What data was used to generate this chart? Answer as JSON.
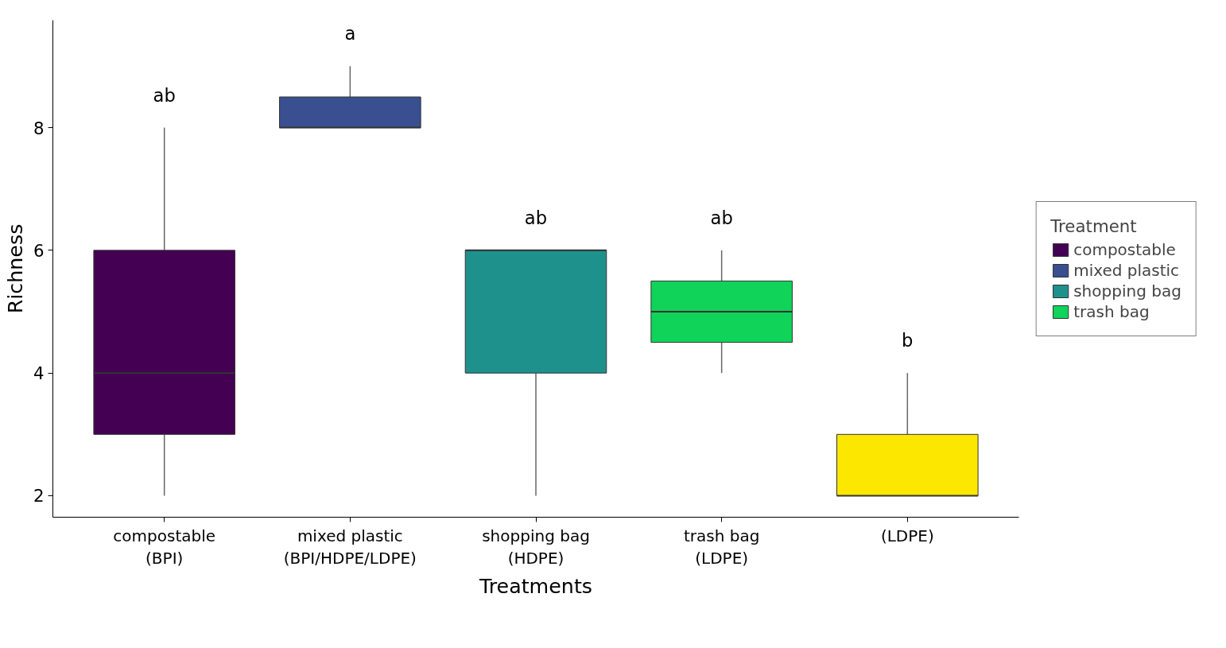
{
  "chart_data": {
    "type": "box",
    "xlabel": "Treatments",
    "ylabel": "Richness",
    "categories": [
      "compostable\n(BPI)",
      "mixed plastic\n(BPI/HDPE/LDPE)",
      "shopping bag\n(HDPE)",
      "trash bag\n(LDPE)",
      "(LDPE)"
    ],
    "series": [
      {
        "name": "compostable",
        "color": "#440154",
        "boxes": [
          {
            "low": 2,
            "q1": 3,
            "median": 4,
            "q3": 6,
            "high": 8
          },
          null,
          null,
          null,
          null
        ]
      },
      {
        "name": "mixed plastic",
        "color": "#3a4f8f",
        "boxes": [
          null,
          {
            "low": 8,
            "q1": 8,
            "median": 8,
            "q3": 8.5,
            "high": 9
          },
          null,
          null,
          null
        ]
      },
      {
        "name": "shopping bag",
        "color": "#1f918c",
        "boxes": [
          null,
          null,
          {
            "low": 2,
            "q1": 4,
            "median": 6,
            "q3": 6,
            "high": 6
          },
          null,
          null
        ]
      },
      {
        "name": "trash bag",
        "color": "#10d35a",
        "boxes": [
          null,
          null,
          null,
          {
            "low": 4,
            "q1": 4.5,
            "median": 5,
            "q3": 5.5,
            "high": 6
          },
          null
        ]
      },
      {
        "color": "#fce700",
        "boxes": [
          null,
          null,
          null,
          null,
          {
            "low": 2,
            "q1": 2,
            "median": 2,
            "q3": 3,
            "high": 4
          }
        ]
      }
    ],
    "legend_title": "Treatment",
    "legend": "right",
    "grid": false,
    "ylim": [
      1.65,
      9.75
    ],
    "yticks": [
      2,
      4,
      6,
      8
    ],
    "annotations": [
      "ab",
      "a",
      "ab",
      "ab",
      "b"
    ]
  }
}
